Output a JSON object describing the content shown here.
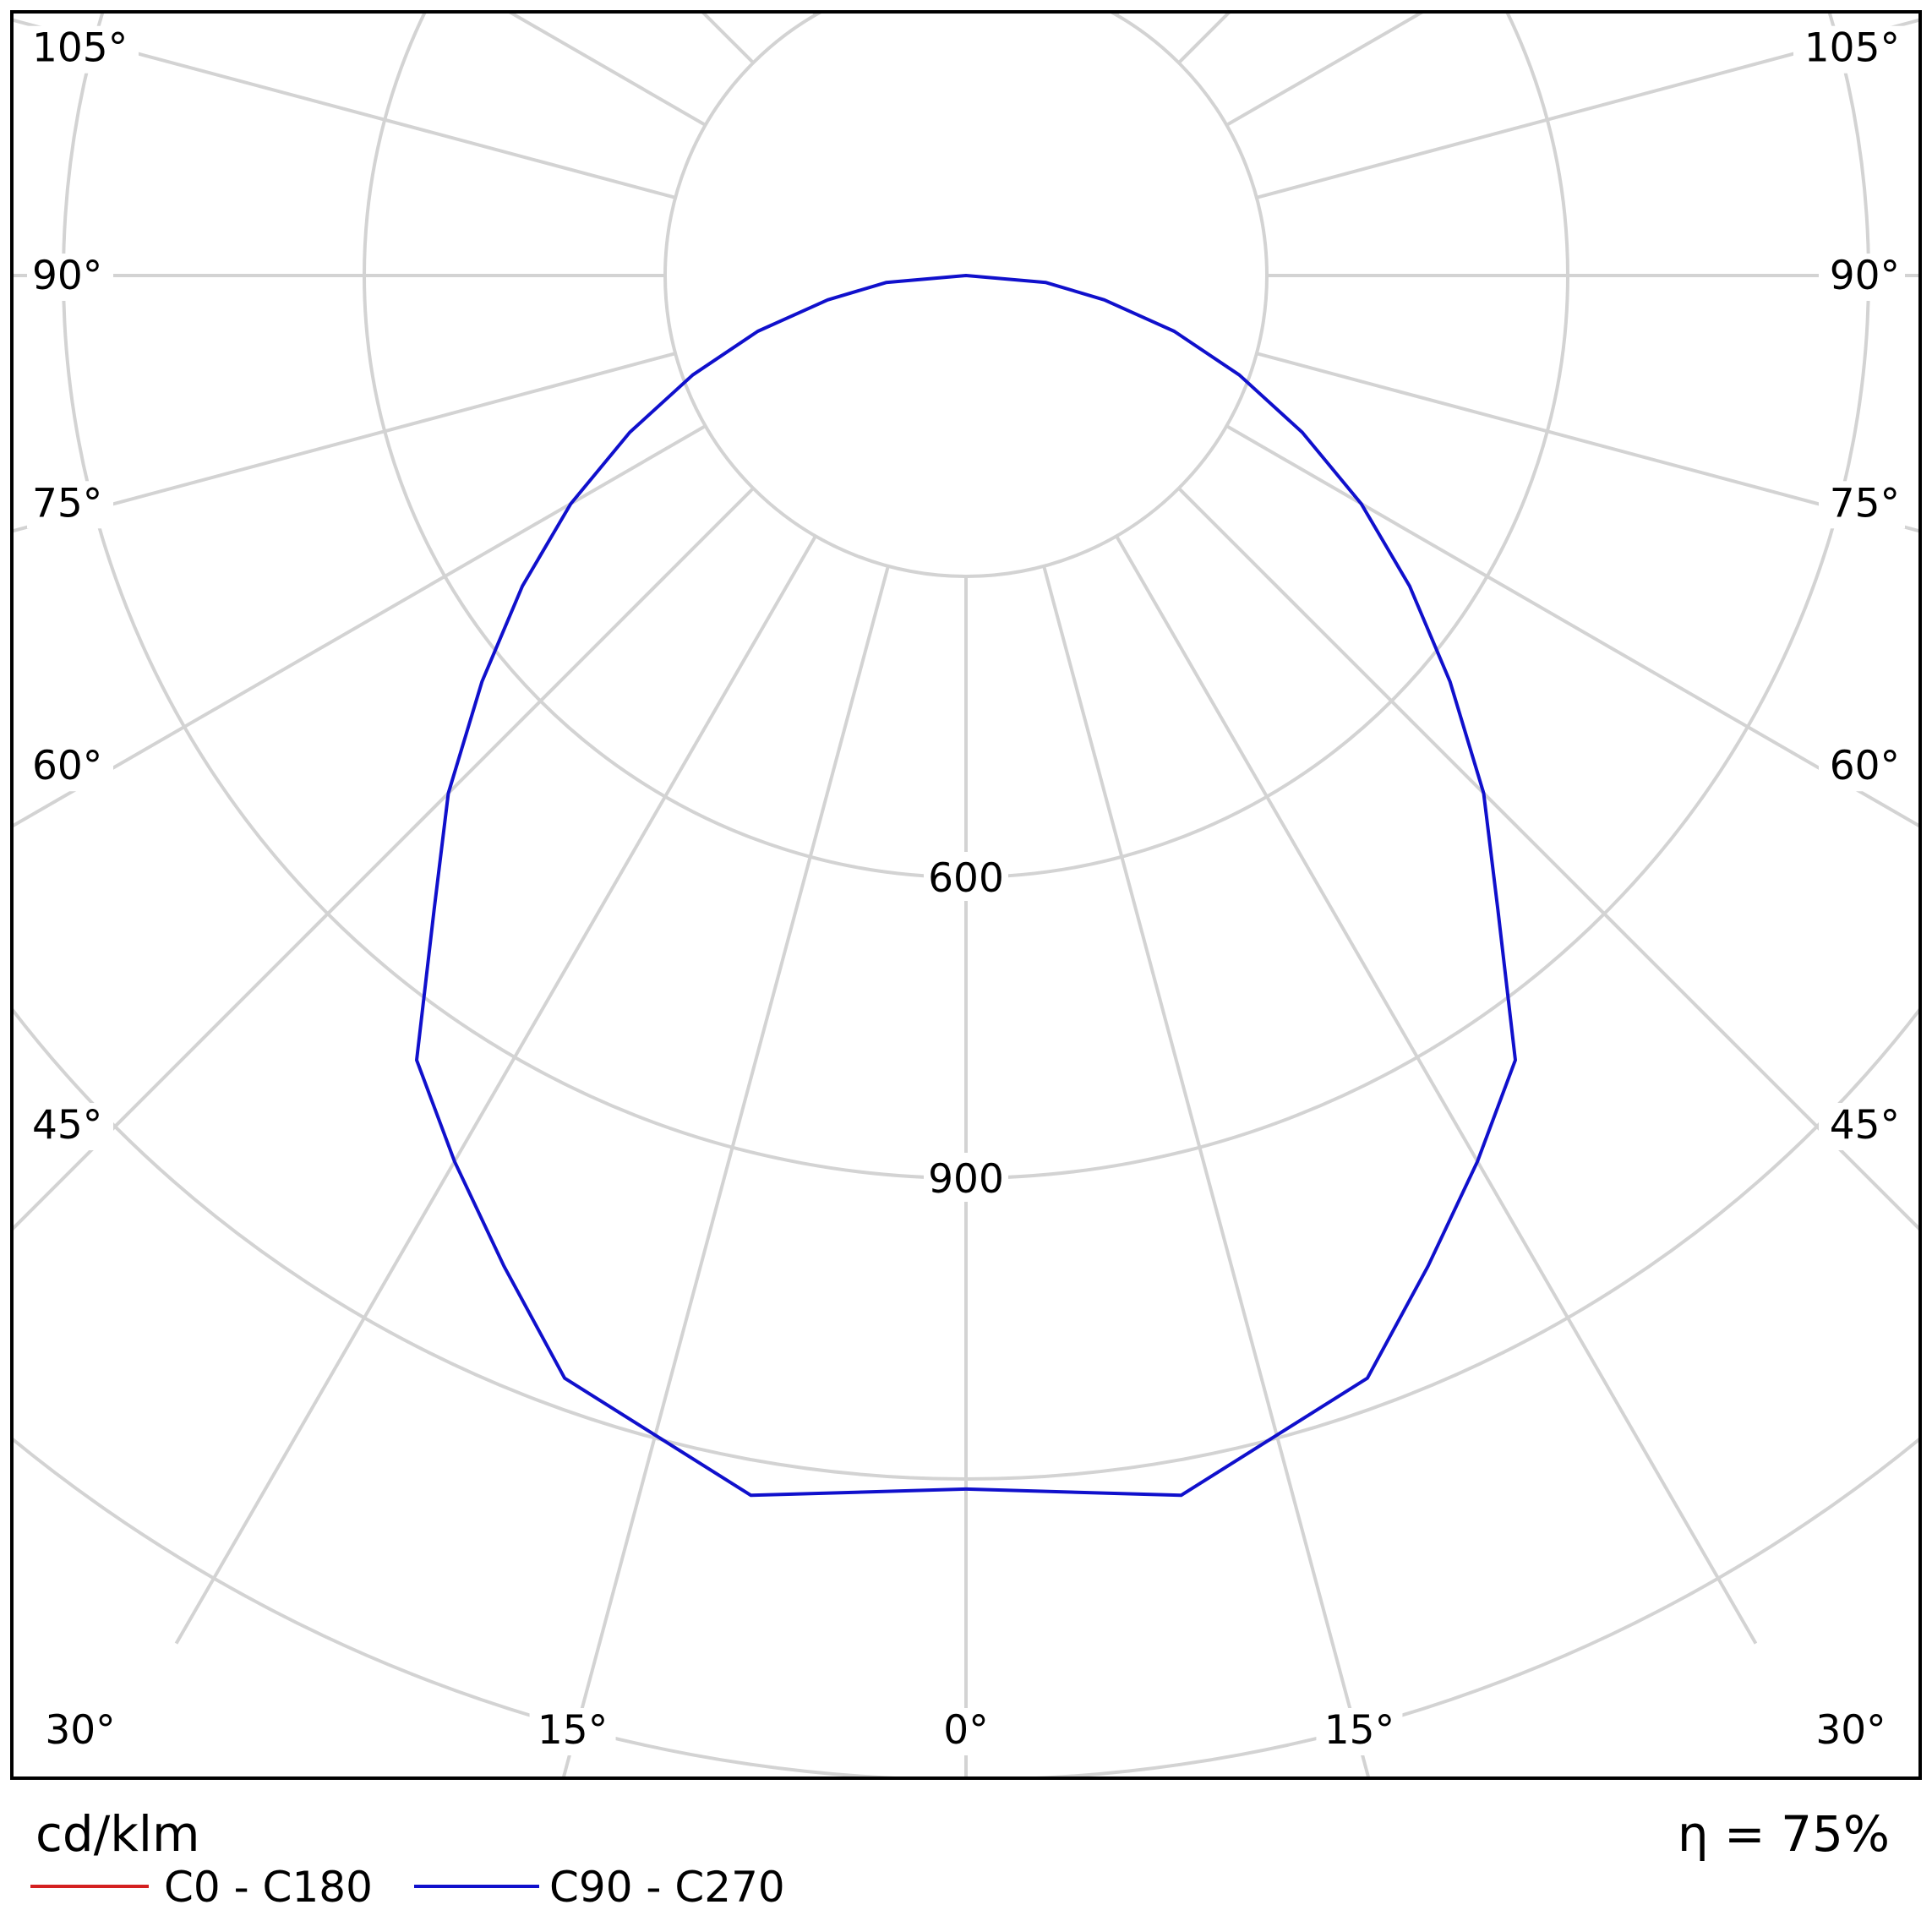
{
  "chart_data": {
    "type": "polar",
    "unit": "cd/klm",
    "efficiency_label": "η = 75%",
    "grid": true,
    "r_max": 1575,
    "ring_values": [
      300,
      600,
      900,
      1200,
      1500
    ],
    "ring_labels": [
      {
        "value": 600,
        "label": "600"
      },
      {
        "value": 900,
        "label": "900"
      }
    ],
    "angle_ticks": [
      {
        "angle": 0,
        "label": "0°",
        "sides": [
          "center"
        ]
      },
      {
        "angle": 15,
        "label": "15°",
        "sides": [
          "left",
          "right"
        ]
      },
      {
        "angle": 30,
        "label": "30°",
        "sides": [
          "left",
          "right"
        ]
      },
      {
        "angle": 45,
        "label": "45°",
        "sides": [
          "left",
          "right"
        ]
      },
      {
        "angle": 60,
        "label": "60°",
        "sides": [
          "left",
          "right"
        ]
      },
      {
        "angle": 75,
        "label": "75°",
        "sides": [
          "left",
          "right"
        ]
      },
      {
        "angle": 90,
        "label": "90°",
        "sides": [
          "left",
          "right"
        ]
      },
      {
        "angle": 105,
        "label": "105°",
        "sides": [
          "left",
          "right"
        ]
      }
    ],
    "legend_placement": "bottom-left",
    "series": [
      {
        "name": "C0 - C180",
        "color": "#d42020",
        "points": []
      },
      {
        "name": "C90 - C270",
        "color": "#1010cc",
        "points": [
          [
            0,
            1210
          ],
          [
            10,
            1235
          ],
          [
            20,
            1170
          ],
          [
            25,
            1090
          ],
          [
            30,
            1020
          ],
          [
            35,
            955
          ],
          [
            40,
            825
          ],
          [
            45,
            730
          ],
          [
            50,
            630
          ],
          [
            55,
            540
          ],
          [
            60,
            455
          ],
          [
            65,
            370
          ],
          [
            70,
            290
          ],
          [
            75,
            215
          ],
          [
            80,
            140
          ],
          [
            85,
            80
          ],
          [
            90,
            0
          ]
        ]
      }
    ]
  }
}
